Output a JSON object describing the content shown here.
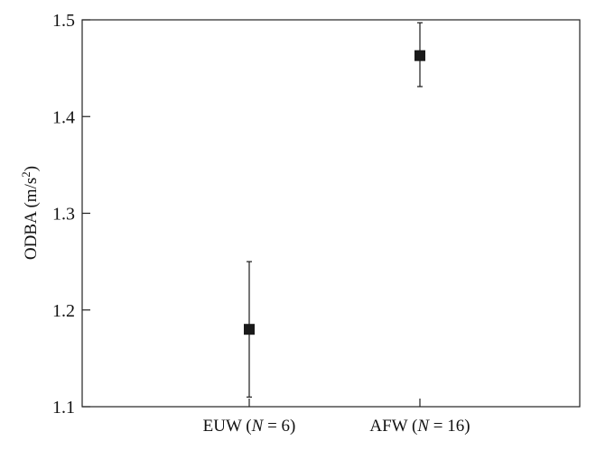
{
  "chart_data": {
    "type": "scatter",
    "ylabel": "ODBA (m/s²)",
    "ylabel_parts": {
      "main": "ODBA (m/s",
      "superscript": "2",
      "close": ")"
    },
    "ylim": [
      1.1,
      1.5
    ],
    "yticks": [
      "1.1",
      "1.2",
      "1.3",
      "1.4",
      "1.5"
    ],
    "grid": false,
    "categories": [
      {
        "label": "EUW (N = 6)",
        "prefix": "EUW (",
        "italic": "N",
        "suffix": " = 6)"
      },
      {
        "label": "AFW (N = 16)",
        "prefix": "AFW (",
        "italic": "N",
        "suffix": " = 16)"
      }
    ],
    "points": [
      {
        "category": "EUW (N = 6)",
        "value": 1.18,
        "error_low": 1.11,
        "error_high": 1.25
      },
      {
        "category": "AFW (N = 16)",
        "value": 1.463,
        "error_low": 1.431,
        "error_high": 1.497
      }
    ],
    "marker": "square",
    "color": "#1a1a1a"
  }
}
